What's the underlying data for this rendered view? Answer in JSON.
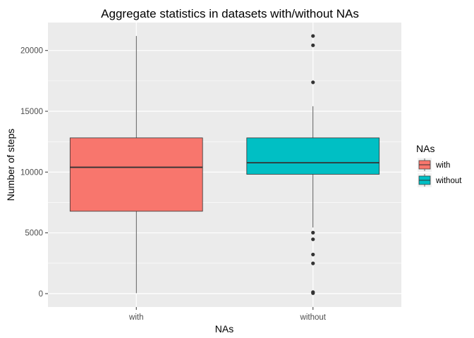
{
  "chart_data": {
    "type": "box",
    "title": "Aggregate statistics in datasets with/without NAs",
    "xlabel": "NAs",
    "ylabel": "Number of steps",
    "categories": [
      "with",
      "without"
    ],
    "ylim": [
      -1100,
      22300
    ],
    "yticks": [
      0,
      5000,
      10000,
      15000,
      20000
    ],
    "ytick_labels": [
      "0",
      "5000",
      "10000",
      "15000",
      "20000"
    ],
    "grid": true,
    "legend": {
      "title": "NAs",
      "position": "right",
      "entries": [
        "with",
        "without"
      ]
    },
    "colors": {
      "with": "#F8766D",
      "without": "#00BFC4",
      "panel": "#EBEBEB",
      "grid_major": "#FFFFFF"
    },
    "series": [
      {
        "category": "with",
        "whisker_low": 41,
        "q1": 6778,
        "median": 10395,
        "q3": 12811,
        "whisker_high": 21194,
        "outliers": []
      },
      {
        "category": "without",
        "whisker_low": 5441,
        "q1": 9819,
        "median": 10766,
        "q3": 12811,
        "whisker_high": 15414,
        "outliers": [
          41,
          126,
          2492,
          3219,
          4472,
          5018,
          17382,
          20427,
          21194
        ]
      }
    ]
  }
}
